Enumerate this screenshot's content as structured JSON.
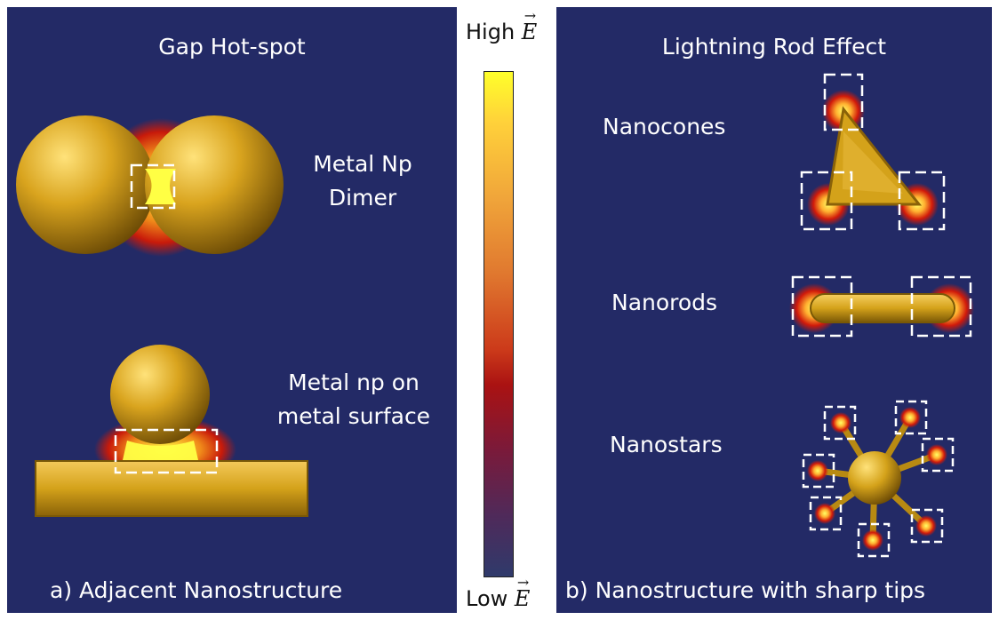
{
  "left_panel": {
    "title": "Gap Hot-spot",
    "dimer_label_line1": "Metal Np",
    "dimer_label_line2": "Dimer",
    "surface_label_line1": "Metal np on",
    "surface_label_line2": "metal surface",
    "caption": "a) Adjacent Nanostructure"
  },
  "colorbar": {
    "high_prefix": "High ",
    "low_prefix": "Low ",
    "symbol": "E"
  },
  "right_panel": {
    "title": "Lightning Rod Effect",
    "cones_label": "Nanocones",
    "rods_label": "Nanorods",
    "stars_label": "Nanostars",
    "caption": "b) Nanostructure with sharp tips"
  },
  "colors": {
    "panel_bg": "#232a66",
    "gold": "#d4a21a",
    "hotspot_yellow": "#ffff33",
    "hotspot_red": "#d11a0a"
  }
}
